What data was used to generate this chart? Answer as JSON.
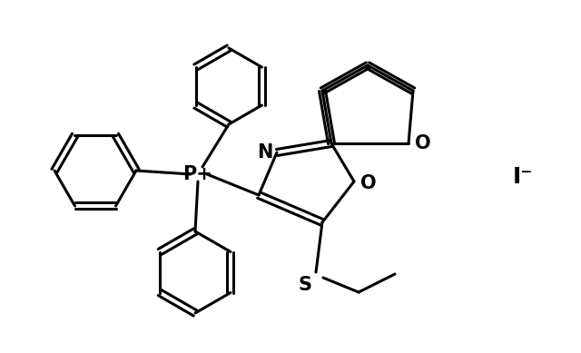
{
  "background_color": "#ffffff",
  "line_color": "#000000",
  "line_width": 2.2,
  "font_size": 15,
  "iodide_label": "I⁻",
  "phosphorus_label": "P+",
  "nitrogen_label": "N",
  "oxygen_furan_label": "O",
  "oxygen_oxazole_label": "O",
  "sulfur_label": "S"
}
